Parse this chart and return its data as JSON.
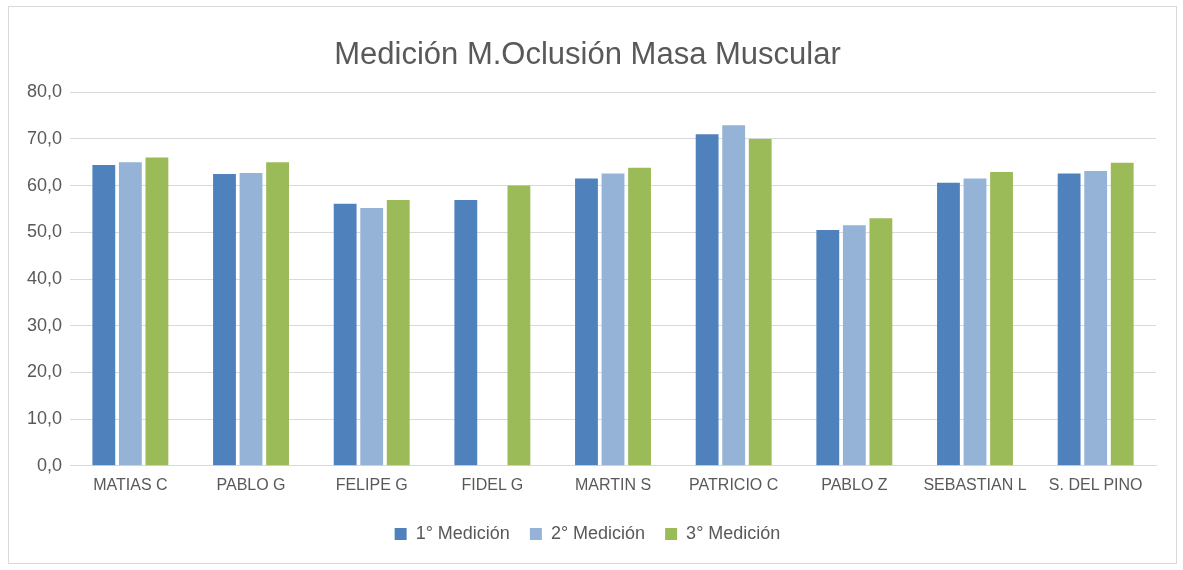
{
  "chart_data": {
    "type": "bar",
    "title": "Medición M.Oclusión Masa Muscular",
    "categories": [
      "MATIAS C",
      "PABLO G",
      "FELIPE G",
      "FIDEL G",
      "MARTIN S",
      "PATRICIO C",
      "PABLO Z",
      "SEBASTIAN L",
      "S. DEL PINO"
    ],
    "series": [
      {
        "name": "1° Medición",
        "color": "#4f81bd",
        "values": [
          64.4,
          62.5,
          56.1,
          56.9,
          61.5,
          71.0,
          50.5,
          60.6,
          62.6
        ]
      },
      {
        "name": "2° Medición",
        "color": "#95b3d7",
        "values": [
          65.0,
          62.7,
          55.2,
          null,
          62.6,
          72.9,
          51.5,
          61.5,
          63.1
        ]
      },
      {
        "name": "3° Medición",
        "color": "#9bbb59",
        "values": [
          66.0,
          65.0,
          56.9,
          60.0,
          63.8,
          70.0,
          53.0,
          62.9,
          64.9
        ]
      }
    ],
    "ylim": [
      0,
      80
    ],
    "yticks": [
      {
        "value": 0,
        "label": "0,0"
      },
      {
        "value": 10,
        "label": "10,0"
      },
      {
        "value": 20,
        "label": "20,0"
      },
      {
        "value": 30,
        "label": "30,0"
      },
      {
        "value": 40,
        "label": "40,0"
      },
      {
        "value": 50,
        "label": "50,0"
      },
      {
        "value": 60,
        "label": "60,0"
      },
      {
        "value": 70,
        "label": "70,0"
      },
      {
        "value": 80,
        "label": "80,0"
      }
    ],
    "grid": "y",
    "legend": "bottom"
  }
}
